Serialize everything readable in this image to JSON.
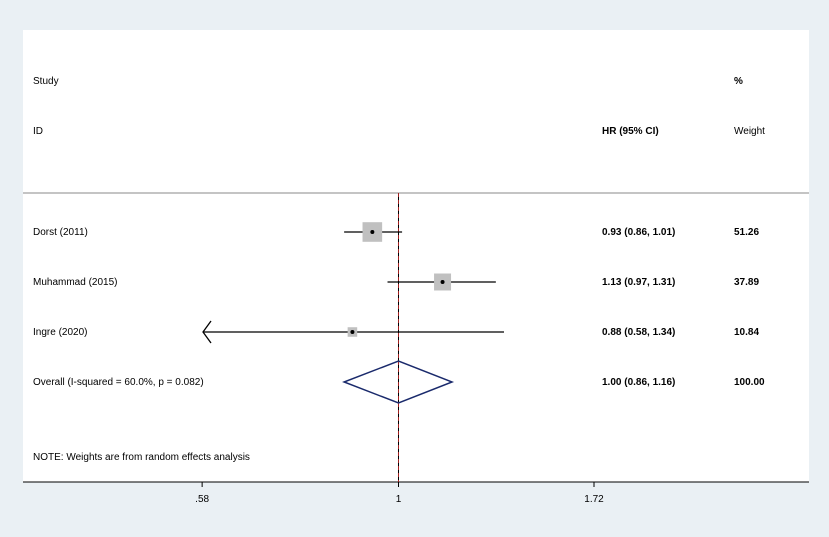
{
  "header": {
    "study_label": "Study",
    "id_label": "ID",
    "hr_label": "HR (95% CI)",
    "pct_label": "%",
    "weight_label": "Weight"
  },
  "chart_data": {
    "type": "forest",
    "scale": "log",
    "reference_line": 1,
    "x_ticks": [
      0.58,
      1,
      1.72
    ],
    "x_tick_labels": [
      ".58",
      "1",
      "1.72"
    ],
    "x_range": [
      0.5814,
      1.72
    ],
    "studies": [
      {
        "label": "Dorst (2011)",
        "hr": 0.93,
        "lower": 0.86,
        "upper": 1.01,
        "hr_text": "0.93 (0.86, 1.01)",
        "weight": 51.26,
        "weight_text": "51.26"
      },
      {
        "label": "Muhammad (2015)",
        "hr": 1.13,
        "lower": 0.97,
        "upper": 1.31,
        "hr_text": "1.13 (0.97, 1.31)",
        "weight": 37.89,
        "weight_text": "37.89"
      },
      {
        "label": "Ingre (2020)",
        "hr": 0.88,
        "lower": 0.58,
        "upper": 1.34,
        "hr_text": "0.88 (0.58, 1.34)",
        "weight": 10.84,
        "weight_text": "10.84",
        "lower_truncated": true
      }
    ],
    "overall": {
      "label": "Overall  (I-squared = 60.0%, p = 0.082)",
      "hr": 1.0,
      "lower": 0.86,
      "upper": 1.16,
      "hr_text": "1.00 (0.86, 1.16)",
      "weight_text": "100.00"
    },
    "note": "NOTE: Weights are from random effects analysis",
    "colors": {
      "background": "#eaf0f4",
      "plot_area": "#ffffff",
      "box": "#c0c0c0",
      "diamond": "#1a2a6c",
      "ref_line": "#000000",
      "overall_line": "#a02020"
    }
  }
}
